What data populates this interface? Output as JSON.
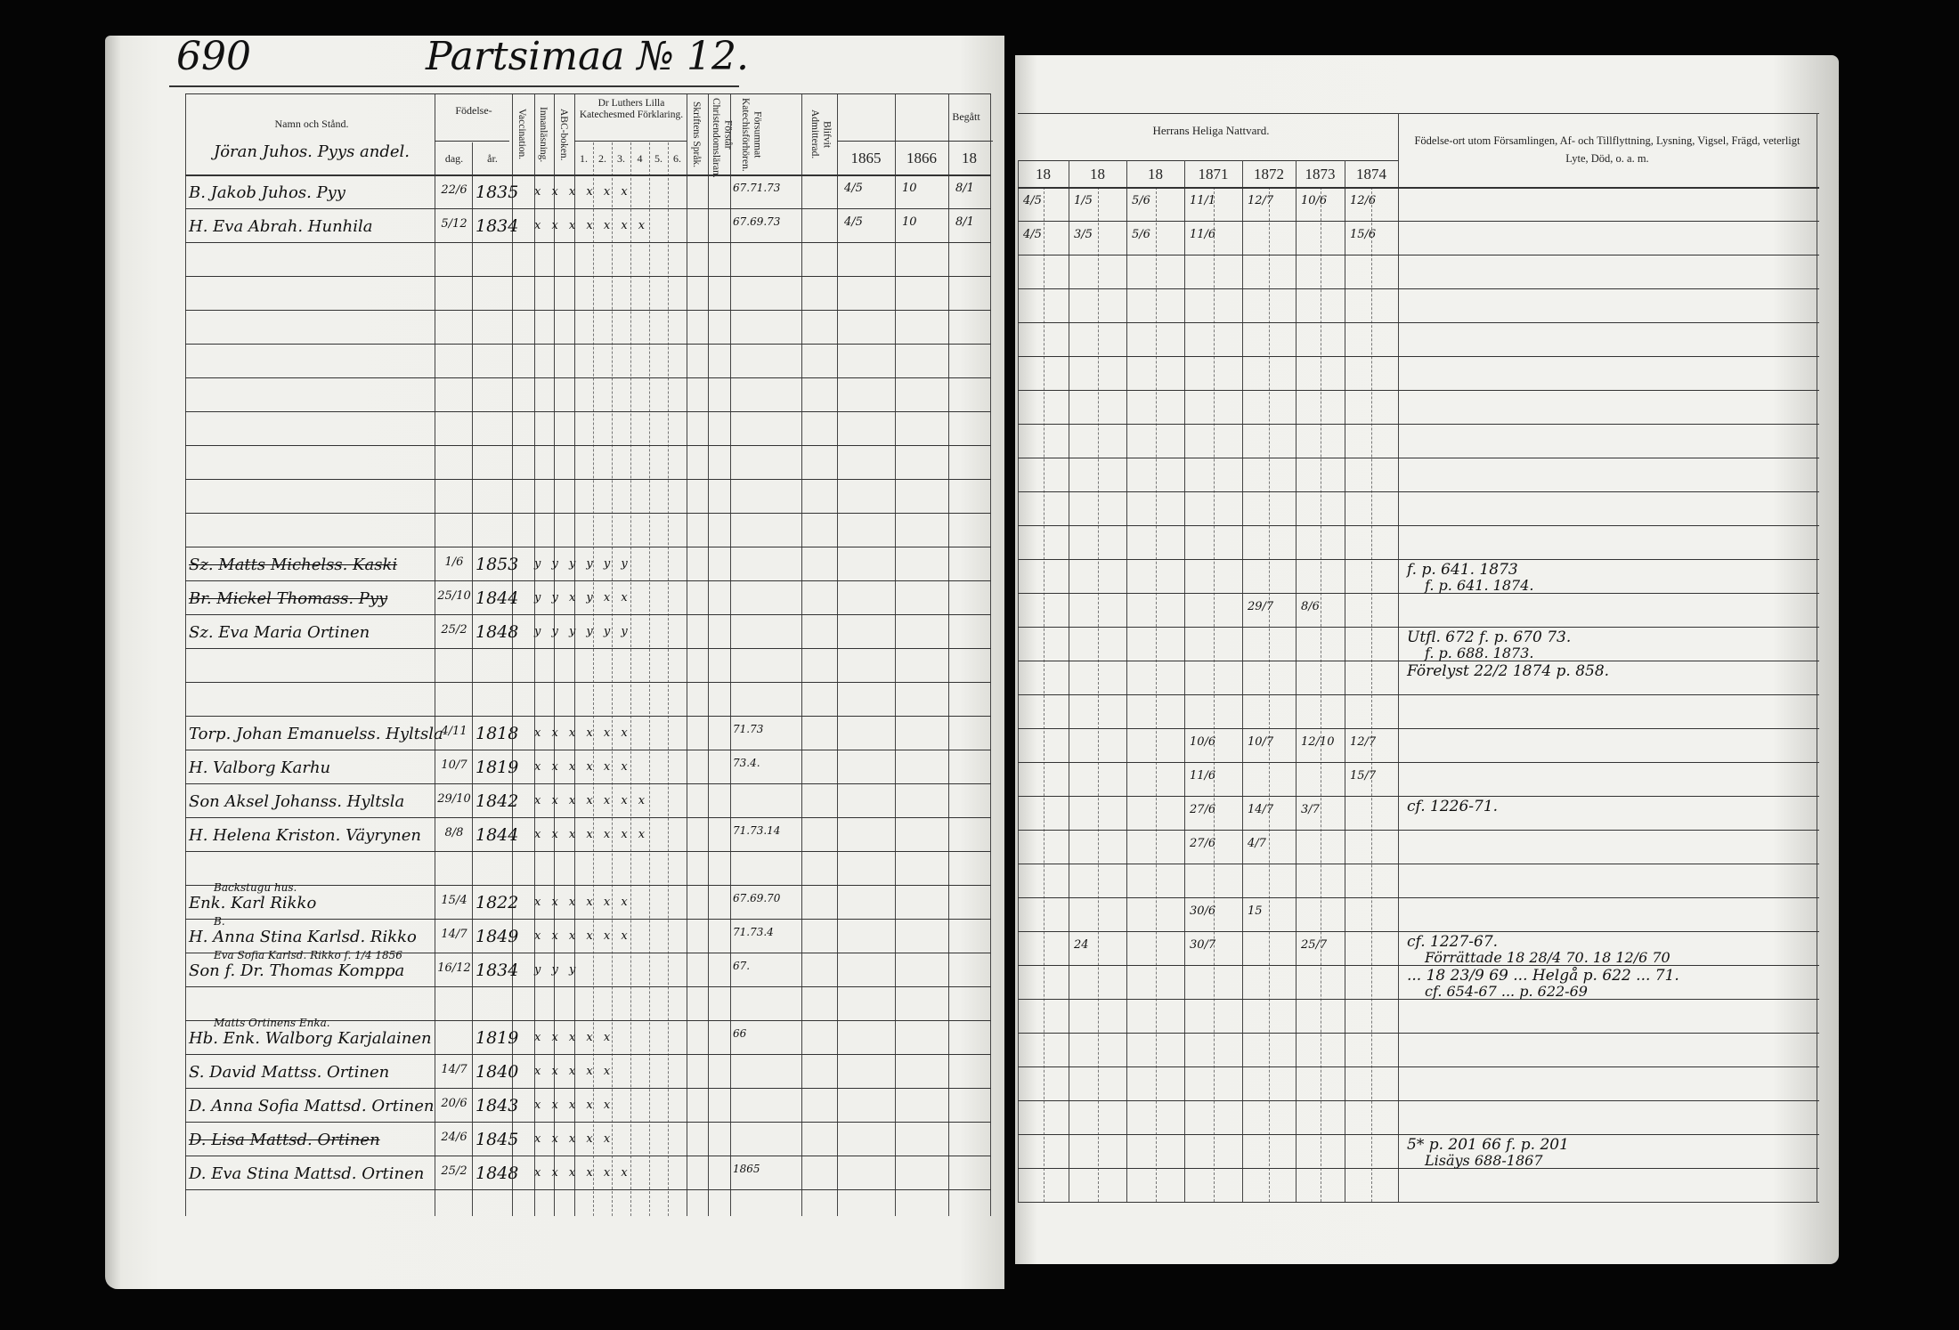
{
  "left_page": {
    "page_number": "690",
    "farm_title": "Partsimaa № 12.",
    "owner_note": "Jöran Juhos. Pyys andel.",
    "headers": {
      "name": "Namn och Stånd.",
      "birth": "Födelse-",
      "birth_day": "dag.",
      "birth_year": "år.",
      "vaccination": "Vaccination.",
      "reading": "Innanläsning.",
      "abc": "ABC-boken.",
      "catechism": "Dr Luthers Lilla Katechesmed Förklaring.",
      "catechism_parts": [
        "1.",
        "2.",
        "3.",
        "4",
        "5.",
        "6."
      ],
      "scripture": "Skriftens Språk.",
      "understanding": "Förstår Christendomsläran.",
      "missed": "Försummat Katechisförhören.",
      "admitted": "Blifvit Admitterad.",
      "communion": "Begått",
      "years": [
        "1865",
        "1866",
        "18"
      ]
    },
    "rows": [
      {
        "name": "B. Jakob Juhos. Pyy",
        "day": "22/6",
        "year": "1835",
        "marks": "x x x x x x",
        "missed": "67.71.73",
        "begatt": [
          "4/5",
          "10",
          "8/1"
        ]
      },
      {
        "name": "H. Eva Abrah. Hunhila",
        "day": "5/12",
        "year": "1834",
        "marks": "x x x x x x x",
        "missed": "67.69.73",
        "begatt": [
          "4/5",
          "10",
          "8/1"
        ]
      },
      {},
      {},
      {},
      {},
      {},
      {},
      {},
      {},
      {},
      {
        "name": "Sz. Matts Michelss. Kaski",
        "day": "1/6",
        "year": "1853",
        "marks": "y y y y y y",
        "struck": true
      },
      {
        "name": "Br. Mickel Thomass. Pyy",
        "day": "25/10",
        "year": "1844",
        "marks": "y y x y x x",
        "struck": true
      },
      {
        "name": "Sz. Eva Maria Ortinen",
        "day": "25/2",
        "year": "1848",
        "marks": "y y y y y y"
      },
      {},
      {},
      {
        "name": "Torp. Johan Emanuelss. Hyltsla",
        "day": "4/11",
        "year": "1818",
        "marks": "x x x x x x",
        "missed": "71.73"
      },
      {
        "name": "H. Valborg Karhu",
        "day": "10/7",
        "year": "1819",
        "marks": "x x x x x x",
        "missed": "73.4."
      },
      {
        "name": "Son Aksel Johanss. Hyltsla",
        "day": "29/10",
        "year": "1842",
        "marks": "x x x x x x x"
      },
      {
        "name": "H. Helena Kriston. Väyrynen",
        "day": "8/8",
        "year": "1844",
        "marks": "x x x x x x x",
        "missed": "71.73.14"
      },
      {},
      {
        "name": "Enk. Karl Rikko",
        "note": "Backstugu hus.",
        "day": "15/4",
        "year": "1822",
        "marks": "x x x x x x",
        "missed": "67.69.70"
      },
      {
        "name": "H. Anna Stina Karlsd. Rikko",
        "note": "B.",
        "day": "14/7",
        "year": "1849",
        "marks": "x x x x x x",
        "missed": "71.73.4"
      },
      {
        "name": "Son f. Dr. Thomas Komppa",
        "note": "Eva Sofia Karlsd. Rikko f. 1/4 1856",
        "day": "16/12",
        "year": "1834",
        "marks": "y y y",
        "missed": "67."
      },
      {},
      {
        "name": "Hb. Enk. Walborg Karjalainen",
        "note": "Matts Ortinens Enka.",
        "year": "1819",
        "marks": "x x x x x",
        "missed": "66"
      },
      {
        "name": "S. David Mattss. Ortinen",
        "day": "14/7",
        "year": "1840",
        "marks": "x x x x x"
      },
      {
        "name": "D. Anna Sofia Mattsd. Ortinen",
        "day": "20/6",
        "year": "1843",
        "marks": "x x x x x"
      },
      {
        "name": "D. Lisa Mattsd. Ortinen",
        "day": "24/6",
        "year": "1845",
        "marks": "x x x x x",
        "struck": true
      },
      {
        "name": "D. Eva Stina Mattsd. Ortinen",
        "day": "25/2",
        "year": "1848",
        "marks": "x x x x x x",
        "missed": "1865"
      }
    ]
  },
  "right_page": {
    "headers": {
      "communion": "Herrans Heliga Nattvard.",
      "years": [
        "18",
        "18",
        "18",
        "1871",
        "1872",
        "1873",
        "1874"
      ],
      "remarks": "Födelse-ort utom Församlingen, Af- och Tillflyttning, Lysning, Vigsel, Frägd, veterligt Lyte, Död, o. a. m."
    },
    "rows": [
      {
        "nattvard": [
          "4/5",
          "1/5",
          "5/6",
          "11/1",
          "12/7",
          "10/6",
          "12/6"
        ]
      },
      {
        "nattvard": [
          "4/5",
          "3/5",
          "5/6",
          "11/6",
          "",
          "",
          "15/6"
        ]
      },
      {},
      {},
      {},
      {},
      {},
      {},
      {},
      {},
      {},
      {
        "remarks": "f. p. 641. 1873",
        "remarks2": "f. p. 641. 1874."
      },
      {
        "nattvard": [
          "",
          "",
          "",
          "",
          "29/7",
          "8/6",
          ""
        ]
      },
      {
        "remarks": "Utfl. 672 f. p. 670 73.",
        "remarks2": "f. p. 688. 1873."
      },
      {
        "remarks": "Förelyst 22/2 1874 p. 858."
      },
      {},
      {
        "nattvard": [
          "",
          "",
          "",
          "10/6",
          "10/7",
          "12/10",
          "12/7"
        ]
      },
      {
        "nattvard": [
          "",
          "",
          "",
          "11/6",
          "",
          "",
          "15/7"
        ]
      },
      {
        "remarks": "cf. 1226-71.",
        "nattvard": [
          "",
          "",
          "",
          "27/6",
          "14/7",
          "3/7",
          ""
        ]
      },
      {
        "nattvard": [
          "",
          "",
          "",
          "27/6",
          "4/7",
          "",
          ""
        ]
      },
      {},
      {
        "nattvard": [
          "",
          "",
          "",
          "30/6",
          "15",
          "",
          ""
        ]
      },
      {
        "remarks": "cf. 1227-67.",
        "remarks2": "Förrättade 18 28/4 70. 18 12/6 70",
        "nattvard": [
          "",
          "24",
          "",
          "30/7",
          "",
          "25/7",
          ""
        ]
      },
      {
        "remarks": "... 18 23/9 69 ... Helgå p. 622 ... 71.",
        "remarks2": "cf. 654-67 ... p. 622-69"
      },
      {},
      {},
      {},
      {},
      {
        "remarks": "5* p. 201 66 f. p. 201",
        "remarks2": "Lisäys 688-1867"
      },
      {}
    ]
  }
}
